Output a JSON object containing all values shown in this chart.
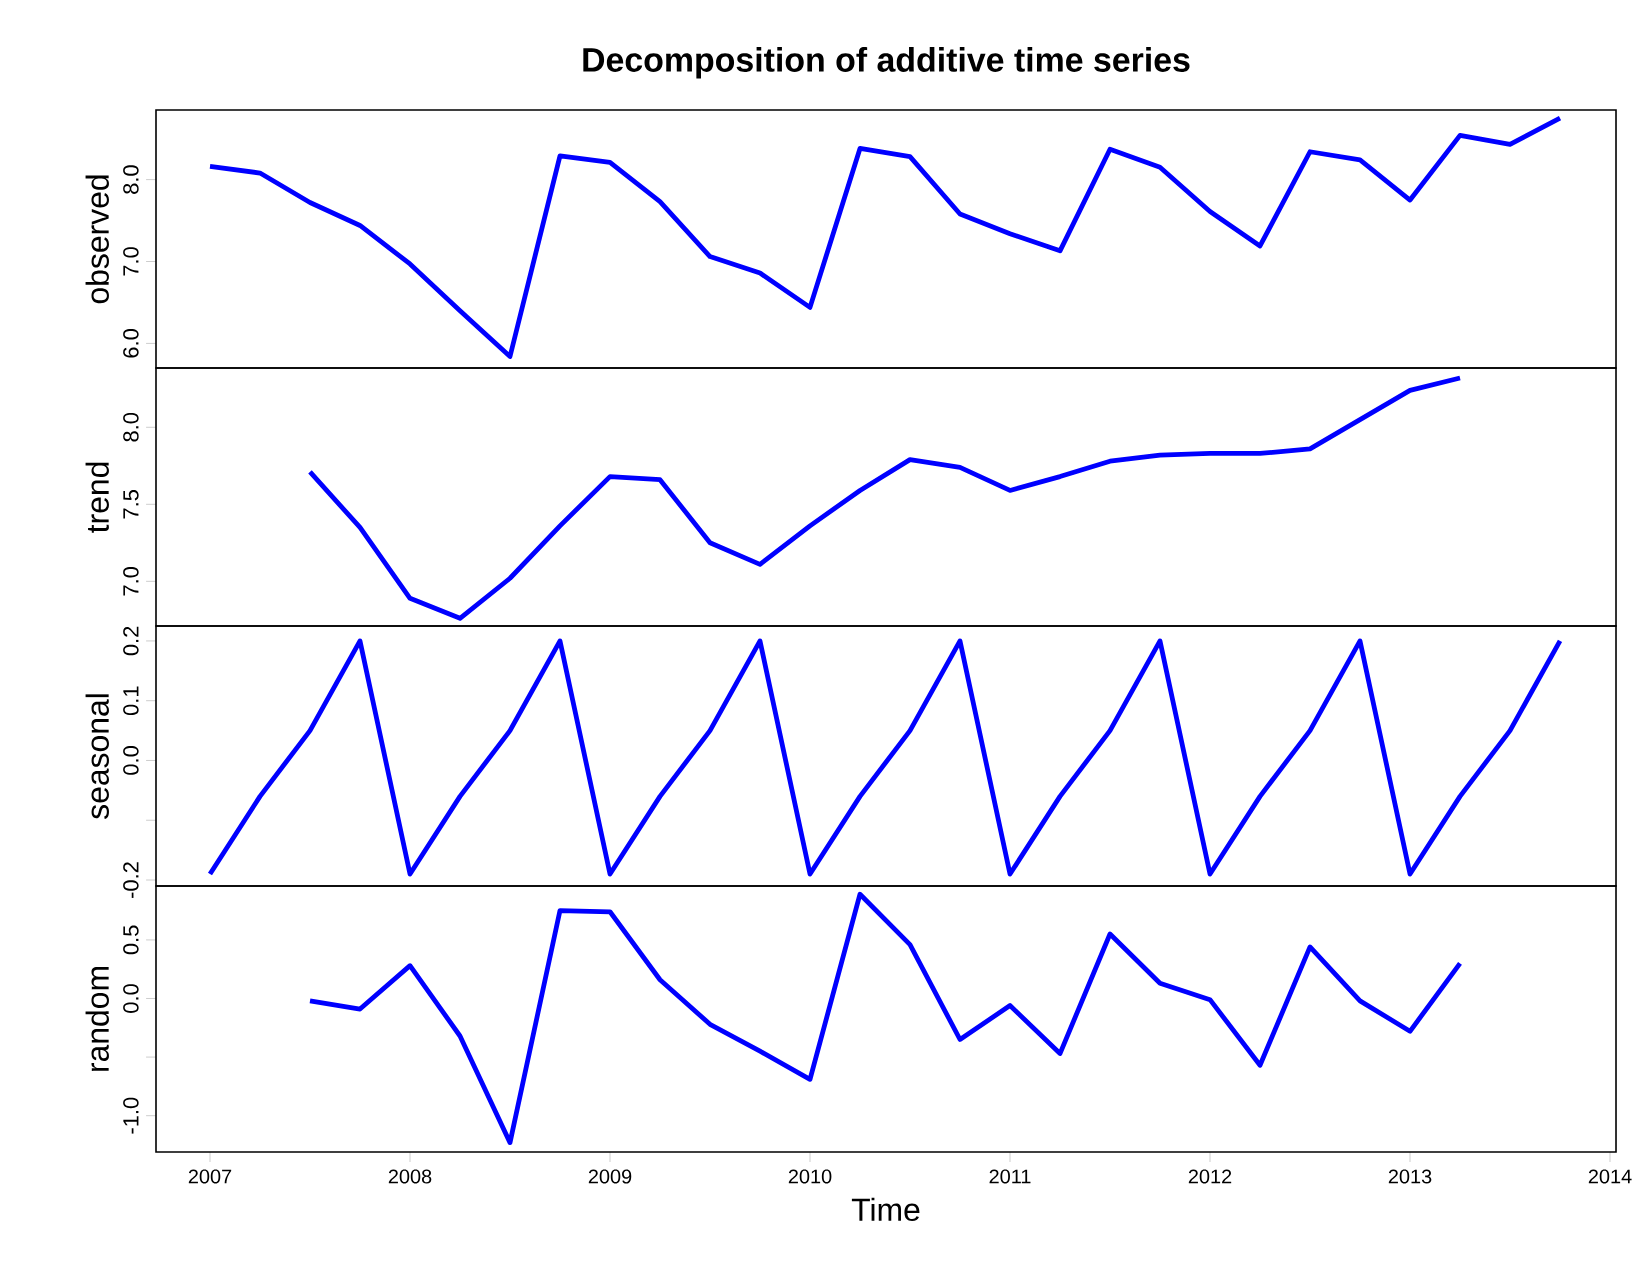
{
  "chart_data": [
    {
      "type": "line",
      "title": "Decomposition of additive time series",
      "ylabel": "observed",
      "color": "#0000ff",
      "tick_labels": "y",
      "xlim": [
        2006.73,
        2014.03
      ],
      "ylim": [
        5.7,
        8.85
      ],
      "yticks": [
        {
          "value": 6.0,
          "label": "6.0"
        },
        {
          "value": 7.0,
          "label": "7.0"
        },
        {
          "value": 8.0,
          "label": "8.0"
        }
      ],
      "x": [
        2007.0,
        2007.25,
        2007.5,
        2007.75,
        2008.0,
        2008.25,
        2008.5,
        2008.75,
        2009.0,
        2009.25,
        2009.5,
        2009.75,
        2010.0,
        2010.25,
        2010.5,
        2010.75,
        2011.0,
        2011.25,
        2011.5,
        2011.75,
        2012.0,
        2012.25,
        2012.5,
        2012.75,
        2013.0,
        2013.25,
        2013.5,
        2013.75
      ],
      "values": [
        8.16,
        8.08,
        7.72,
        7.44,
        6.97,
        6.4,
        5.84,
        8.29,
        8.21,
        7.73,
        7.06,
        6.86,
        6.44,
        8.38,
        8.28,
        7.58,
        7.34,
        7.13,
        8.37,
        8.15,
        7.61,
        7.19,
        8.34,
        8.24,
        7.75,
        8.54,
        8.43,
        8.75
      ]
    },
    {
      "type": "line",
      "ylabel": "trend",
      "color": "#0000ff",
      "tick_labels": "y",
      "xlim": [
        2006.73,
        2014.03
      ],
      "ylim": [
        6.71,
        8.385
      ],
      "yticks": [
        {
          "value": 7.0,
          "label": "7.0"
        },
        {
          "value": 7.5,
          "label": "7.5"
        },
        {
          "value": 8.0,
          "label": "8.0"
        }
      ],
      "x": [
        2007.5,
        2007.75,
        2008.0,
        2008.25,
        2008.5,
        2008.75,
        2009.0,
        2009.25,
        2009.5,
        2009.75,
        2010.0,
        2010.25,
        2010.5,
        2010.75,
        2011.0,
        2011.25,
        2011.5,
        2011.75,
        2012.0,
        2012.25,
        2012.5,
        2012.75,
        2013.0,
        2013.25
      ],
      "values": [
        7.71,
        7.35,
        6.89,
        6.76,
        7.02,
        7.36,
        7.68,
        7.66,
        7.25,
        7.11,
        7.36,
        7.59,
        7.79,
        7.74,
        7.59,
        7.68,
        7.78,
        7.82,
        7.83,
        7.83,
        7.86,
        8.05,
        8.24,
        8.32
      ]
    },
    {
      "type": "line",
      "ylabel": "seasonal",
      "color": "#0000ff",
      "tick_labels": "y",
      "xlim": [
        2006.73,
        2014.03
      ],
      "ylim": [
        -0.21,
        0.225
      ],
      "yticks": [
        {
          "value": -0.2,
          "label": "-0.2"
        },
        {
          "value": -0.1,
          "label": null
        },
        {
          "value": 0.0,
          "label": "0.0"
        },
        {
          "value": 0.1,
          "label": "0.1"
        },
        {
          "value": 0.2,
          "label": "0.2"
        }
      ],
      "x": [
        2007.0,
        2007.25,
        2007.5,
        2007.75,
        2008.0,
        2008.25,
        2008.5,
        2008.75,
        2009.0,
        2009.25,
        2009.5,
        2009.75,
        2010.0,
        2010.25,
        2010.5,
        2010.75,
        2011.0,
        2011.25,
        2011.5,
        2011.75,
        2012.0,
        2012.25,
        2012.5,
        2012.75,
        2013.0,
        2013.25,
        2013.5,
        2013.75
      ],
      "values": [
        -0.19,
        -0.06,
        0.05,
        0.2,
        -0.19,
        -0.06,
        0.05,
        0.2,
        -0.19,
        -0.06,
        0.05,
        0.2,
        -0.19,
        -0.06,
        0.05,
        0.2,
        -0.19,
        -0.06,
        0.05,
        0.2,
        -0.19,
        -0.06,
        0.05,
        0.2,
        -0.19,
        -0.06,
        0.05,
        0.2
      ]
    },
    {
      "type": "line",
      "ylabel": "random",
      "xlabel": "Time",
      "color": "#0000ff",
      "xlim": [
        2006.73,
        2014.03
      ],
      "xticks": [
        2007,
        2008,
        2009,
        2010,
        2011,
        2012,
        2013,
        2014
      ],
      "ylim": [
        -1.31,
        0.96
      ],
      "yticks": [
        {
          "value": -1.0,
          "label": "-1.0"
        },
        {
          "value": -0.5,
          "label": null
        },
        {
          "value": 0.0,
          "label": "0.0"
        },
        {
          "value": 0.5,
          "label": "0.5"
        }
      ],
      "x": [
        2007.5,
        2007.75,
        2008.0,
        2008.25,
        2008.5,
        2008.75,
        2009.0,
        2009.25,
        2009.5,
        2009.75,
        2010.0,
        2010.25,
        2010.5,
        2010.75,
        2011.0,
        2011.25,
        2011.5,
        2011.75,
        2012.0,
        2012.25,
        2012.5,
        2012.75,
        2013.0,
        2013.25
      ],
      "values": [
        -0.02,
        -0.09,
        0.28,
        -0.32,
        -1.23,
        0.75,
        0.74,
        0.16,
        -0.22,
        -0.45,
        -0.69,
        0.89,
        0.46,
        -0.35,
        -0.06,
        -0.47,
        0.55,
        0.13,
        -0.01,
        -0.57,
        0.44,
        -0.02,
        -0.28,
        0.3
      ]
    }
  ]
}
